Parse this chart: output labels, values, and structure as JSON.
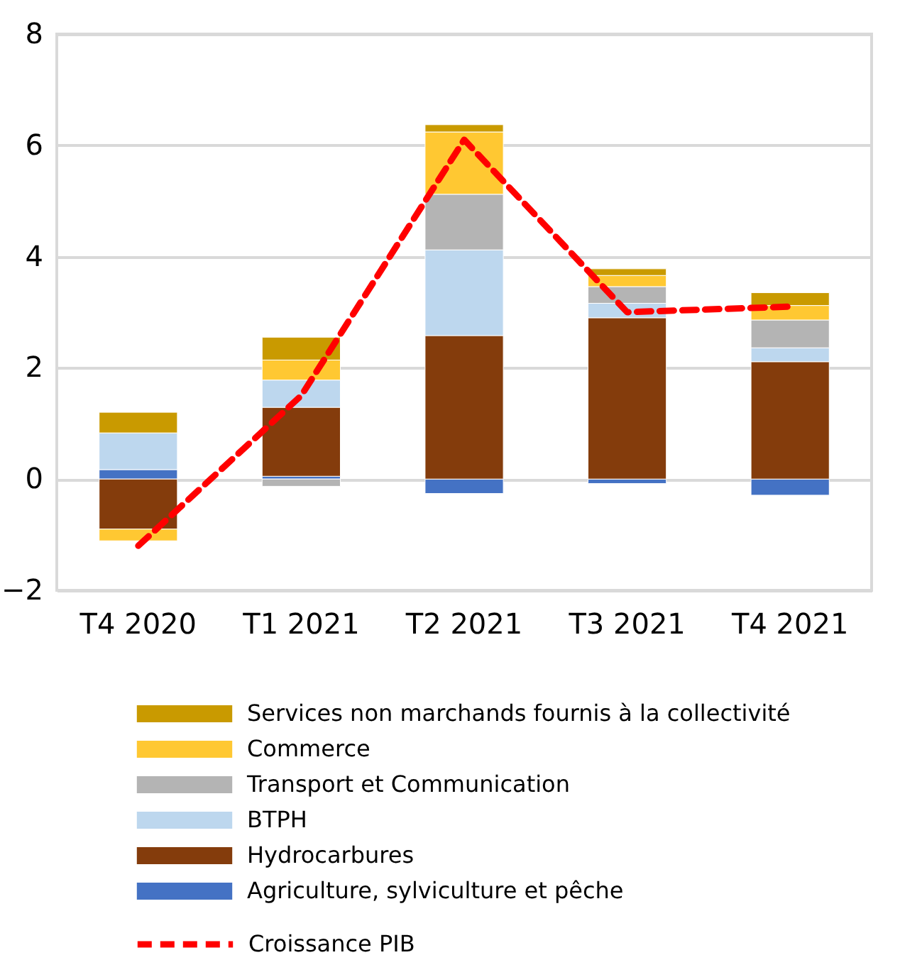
{
  "chart_data": {
    "type": "bar",
    "stacked": true,
    "categories": [
      "T4 2020",
      "T1 2021",
      "T2 2021",
      "T3 2021",
      "T4 2021"
    ],
    "series": [
      {
        "name": "Agriculture, sylviculture et pêche",
        "color": "#4472c4",
        "values": [
          0.17,
          0.05,
          -0.26,
          -0.08,
          -0.29
        ]
      },
      {
        "name": "Hydrocarbures",
        "color": "#843c0c",
        "values": [
          -0.9,
          1.24,
          2.58,
          2.9,
          2.11
        ]
      },
      {
        "name": "BTPH",
        "color": "#bdd7ee",
        "values": [
          0.66,
          0.49,
          1.54,
          0.26,
          0.25
        ]
      },
      {
        "name": "Transport et Communication",
        "color": "#b4b4b4",
        "values": [
          0,
          -0.13,
          1.0,
          0.3,
          0.5
        ]
      },
      {
        "name": "Commerce",
        "color": "#ffc832",
        "values": [
          -0.21,
          0.36,
          1.12,
          0.2,
          0.26
        ]
      },
      {
        "name": "Services non marchands fournis à la collectivité",
        "color": "#c99a00",
        "values": [
          0.37,
          0.41,
          0.13,
          0.12,
          0.23
        ]
      },
      {
        "name": "Croissance PIB",
        "type": "line",
        "color": "#ff0000",
        "line_style": "dashed",
        "values": [
          -1.2,
          1.5,
          6.1,
          3.0,
          3.1
        ]
      }
    ],
    "ylim": [
      -2,
      8
    ],
    "yticks": [
      -2,
      0,
      2,
      4,
      6,
      8
    ],
    "grid": "y",
    "legend": "bottom",
    "marker": "none"
  }
}
